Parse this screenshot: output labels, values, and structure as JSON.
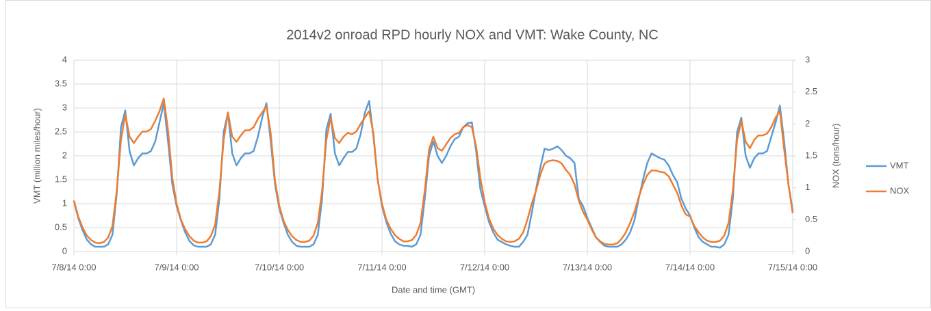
{
  "chart_data": {
    "type": "line",
    "title": "2014v2 onroad RPD hourly NOX and VMT: Wake County, NC",
    "x_label": "Date and time (GMT)",
    "y_label": "VMT (million miles/hour)",
    "y2_label": "NOX (tons/hour)",
    "x": [
      "7/8/14 0:00",
      "7/8/14 1:00",
      "7/8/14 2:00",
      "7/8/14 3:00",
      "7/8/14 4:00",
      "7/8/14 5:00",
      "7/8/14 6:00",
      "7/8/14 7:00",
      "7/8/14 8:00",
      "7/8/14 9:00",
      "7/8/14 10:00",
      "7/8/14 11:00",
      "7/8/14 12:00",
      "7/8/14 13:00",
      "7/8/14 14:00",
      "7/8/14 15:00",
      "7/8/14 16:00",
      "7/8/14 17:00",
      "7/8/14 18:00",
      "7/8/14 19:00",
      "7/8/14 20:00",
      "7/8/14 21:00",
      "7/8/14 22:00",
      "7/8/14 23:00",
      "7/9/14 0:00",
      "7/9/14 1:00",
      "7/9/14 2:00",
      "7/9/14 3:00",
      "7/9/14 4:00",
      "7/9/14 5:00",
      "7/9/14 6:00",
      "7/9/14 7:00",
      "7/9/14 8:00",
      "7/9/14 9:00",
      "7/9/14 10:00",
      "7/9/14 11:00",
      "7/9/14 12:00",
      "7/9/14 13:00",
      "7/9/14 14:00",
      "7/9/14 15:00",
      "7/9/14 16:00",
      "7/9/14 17:00",
      "7/9/14 18:00",
      "7/9/14 19:00",
      "7/9/14 20:00",
      "7/9/14 21:00",
      "7/9/14 22:00",
      "7/9/14 23:00",
      "7/10/14 0:00",
      "7/10/14 1:00",
      "7/10/14 2:00",
      "7/10/14 3:00",
      "7/10/14 4:00",
      "7/10/14 5:00",
      "7/10/14 6:00",
      "7/10/14 7:00",
      "7/10/14 8:00",
      "7/10/14 9:00",
      "7/10/14 10:00",
      "7/10/14 11:00",
      "7/10/14 12:00",
      "7/10/14 13:00",
      "7/10/14 14:00",
      "7/10/14 15:00",
      "7/10/14 16:00",
      "7/10/14 17:00",
      "7/10/14 18:00",
      "7/10/14 19:00",
      "7/10/14 20:00",
      "7/10/14 21:00",
      "7/10/14 22:00",
      "7/10/14 23:00",
      "7/11/14 0:00",
      "7/11/14 1:00",
      "7/11/14 2:00",
      "7/11/14 3:00",
      "7/11/14 4:00",
      "7/11/14 5:00",
      "7/11/14 6:00",
      "7/11/14 7:00",
      "7/11/14 8:00",
      "7/11/14 9:00",
      "7/11/14 10:00",
      "7/11/14 11:00",
      "7/11/14 12:00",
      "7/11/14 13:00",
      "7/11/14 14:00",
      "7/11/14 15:00",
      "7/11/14 16:00",
      "7/11/14 17:00",
      "7/11/14 18:00",
      "7/11/14 19:00",
      "7/11/14 20:00",
      "7/11/14 21:00",
      "7/11/14 22:00",
      "7/11/14 23:00",
      "7/12/14 0:00",
      "7/12/14 1:00",
      "7/12/14 2:00",
      "7/12/14 3:00",
      "7/12/14 4:00",
      "7/12/14 5:00",
      "7/12/14 6:00",
      "7/12/14 7:00",
      "7/12/14 8:00",
      "7/12/14 9:00",
      "7/12/14 10:00",
      "7/12/14 11:00",
      "7/12/14 12:00",
      "7/12/14 13:00",
      "7/12/14 14:00",
      "7/12/14 15:00",
      "7/12/14 16:00",
      "7/12/14 17:00",
      "7/12/14 18:00",
      "7/12/14 19:00",
      "7/12/14 20:00",
      "7/12/14 21:00",
      "7/12/14 22:00",
      "7/12/14 23:00",
      "7/13/14 0:00",
      "7/13/14 1:00",
      "7/13/14 2:00",
      "7/13/14 3:00",
      "7/13/14 4:00",
      "7/13/14 5:00",
      "7/13/14 6:00",
      "7/13/14 7:00",
      "7/13/14 8:00",
      "7/13/14 9:00",
      "7/13/14 10:00",
      "7/13/14 11:00",
      "7/13/14 12:00",
      "7/13/14 13:00",
      "7/13/14 14:00",
      "7/13/14 15:00",
      "7/13/14 16:00",
      "7/13/14 17:00",
      "7/13/14 18:00",
      "7/13/14 19:00",
      "7/13/14 20:00",
      "7/13/14 21:00",
      "7/13/14 22:00",
      "7/13/14 23:00",
      "7/14/14 0:00",
      "7/14/14 1:00",
      "7/14/14 2:00",
      "7/14/14 3:00",
      "7/14/14 4:00",
      "7/14/14 5:00",
      "7/14/14 6:00",
      "7/14/14 7:00",
      "7/14/14 8:00",
      "7/14/14 9:00",
      "7/14/14 10:00",
      "7/14/14 11:00",
      "7/14/14 12:00",
      "7/14/14 13:00",
      "7/14/14 14:00",
      "7/14/14 15:00",
      "7/14/14 16:00",
      "7/14/14 17:00",
      "7/14/14 18:00",
      "7/14/14 19:00",
      "7/14/14 20:00",
      "7/14/14 21:00",
      "7/14/14 22:00",
      "7/14/14 23:00",
      "7/15/14 0:00"
    ],
    "xticks": [
      "7/8/14 0:00",
      "7/9/14 0:00",
      "7/10/14 0:00",
      "7/11/14 0:00",
      "7/12/14 0:00",
      "7/13/14 0:00",
      "7/14/14 0:00",
      "7/15/14 0:00"
    ],
    "series": [
      {
        "name": "VMT",
        "color": "#5b9bd5",
        "axis": "y",
        "values": [
          1.05,
          0.7,
          0.45,
          0.25,
          0.15,
          0.1,
          0.1,
          0.1,
          0.15,
          0.35,
          1.2,
          2.6,
          2.95,
          2.1,
          1.8,
          1.95,
          2.05,
          2.05,
          2.1,
          2.3,
          2.7,
          3.1,
          2.3,
          1.4,
          0.95,
          0.65,
          0.4,
          0.22,
          0.13,
          0.1,
          0.1,
          0.1,
          0.15,
          0.35,
          1.1,
          2.5,
          2.9,
          2.05,
          1.8,
          1.95,
          2.05,
          2.05,
          2.1,
          2.4,
          2.8,
          3.1,
          2.3,
          1.4,
          0.9,
          0.6,
          0.35,
          0.2,
          0.12,
          0.1,
          0.1,
          0.1,
          0.15,
          0.35,
          1.1,
          2.55,
          2.88,
          2.05,
          1.8,
          1.95,
          2.08,
          2.08,
          2.15,
          2.45,
          2.9,
          3.15,
          2.4,
          1.5,
          0.95,
          0.62,
          0.38,
          0.22,
          0.15,
          0.12,
          0.12,
          0.1,
          0.15,
          0.35,
          1.1,
          2.0,
          2.3,
          2.0,
          1.85,
          2.0,
          2.2,
          2.35,
          2.4,
          2.6,
          2.68,
          2.7,
          2.1,
          1.3,
          0.95,
          0.62,
          0.4,
          0.25,
          0.2,
          0.15,
          0.12,
          0.1,
          0.1,
          0.2,
          0.35,
          0.8,
          1.3,
          1.75,
          2.15,
          2.12,
          2.15,
          2.2,
          2.12,
          2.0,
          1.95,
          1.85,
          1.1,
          0.95,
          0.7,
          0.5,
          0.3,
          0.2,
          0.12,
          0.1,
          0.1,
          0.1,
          0.15,
          0.25,
          0.4,
          0.65,
          1.1,
          1.5,
          1.85,
          2.05,
          2.0,
          1.95,
          1.92,
          1.8,
          1.6,
          1.45,
          1.1,
          0.9,
          0.75,
          0.5,
          0.3,
          0.2,
          0.15,
          0.1,
          0.1,
          0.08,
          0.15,
          0.35,
          1.1,
          2.5,
          2.8,
          2.0,
          1.75,
          1.95,
          2.05,
          2.05,
          2.1,
          2.4,
          2.7,
          3.05,
          2.3,
          1.4,
          0.85
        ]
      },
      {
        "name": "NOX",
        "color": "#ed7d31",
        "axis": "y2",
        "values": [
          0.8,
          0.55,
          0.38,
          0.25,
          0.18,
          0.14,
          0.13,
          0.15,
          0.22,
          0.4,
          0.95,
          1.75,
          2.15,
          1.8,
          1.7,
          1.8,
          1.88,
          1.88,
          1.92,
          2.05,
          2.2,
          2.4,
          1.9,
          1.15,
          0.75,
          0.5,
          0.35,
          0.24,
          0.17,
          0.14,
          0.14,
          0.16,
          0.24,
          0.42,
          0.95,
          1.75,
          2.18,
          1.8,
          1.72,
          1.82,
          1.9,
          1.9,
          1.95,
          2.08,
          2.18,
          2.28,
          1.85,
          1.1,
          0.72,
          0.48,
          0.34,
          0.24,
          0.18,
          0.15,
          0.15,
          0.17,
          0.25,
          0.45,
          0.95,
          1.75,
          2.1,
          1.78,
          1.7,
          1.8,
          1.86,
          1.84,
          1.88,
          2.0,
          2.1,
          2.2,
          1.85,
          1.12,
          0.75,
          0.5,
          0.36,
          0.26,
          0.2,
          0.16,
          0.16,
          0.18,
          0.26,
          0.45,
          0.95,
          1.6,
          1.8,
          1.62,
          1.58,
          1.68,
          1.78,
          1.84,
          1.86,
          1.95,
          1.98,
          1.95,
          1.65,
          1.15,
          0.78,
          0.52,
          0.36,
          0.26,
          0.2,
          0.16,
          0.15,
          0.16,
          0.2,
          0.3,
          0.5,
          0.75,
          0.95,
          1.2,
          1.38,
          1.42,
          1.43,
          1.42,
          1.38,
          1.28,
          1.2,
          1.05,
          0.8,
          0.62,
          0.5,
          0.35,
          0.22,
          0.16,
          0.12,
          0.11,
          0.11,
          0.13,
          0.2,
          0.3,
          0.45,
          0.62,
          0.85,
          1.05,
          1.2,
          1.27,
          1.27,
          1.25,
          1.24,
          1.18,
          1.05,
          0.92,
          0.72,
          0.58,
          0.55,
          0.4,
          0.3,
          0.22,
          0.17,
          0.15,
          0.15,
          0.17,
          0.25,
          0.45,
          0.95,
          1.75,
          2.05,
          1.72,
          1.62,
          1.75,
          1.82,
          1.82,
          1.85,
          1.95,
          2.1,
          2.2,
          1.6,
          1.05,
          0.6
        ]
      }
    ],
    "ylim": [
      0,
      4
    ],
    "yticks": [
      0,
      0.5,
      1,
      1.5,
      2,
      2.5,
      3,
      3.5,
      4
    ],
    "y2lim": [
      0,
      3
    ],
    "y2ticks": [
      0,
      0.5,
      1,
      1.5,
      2,
      2.5,
      3
    ],
    "grid": true,
    "legend": "right"
  }
}
